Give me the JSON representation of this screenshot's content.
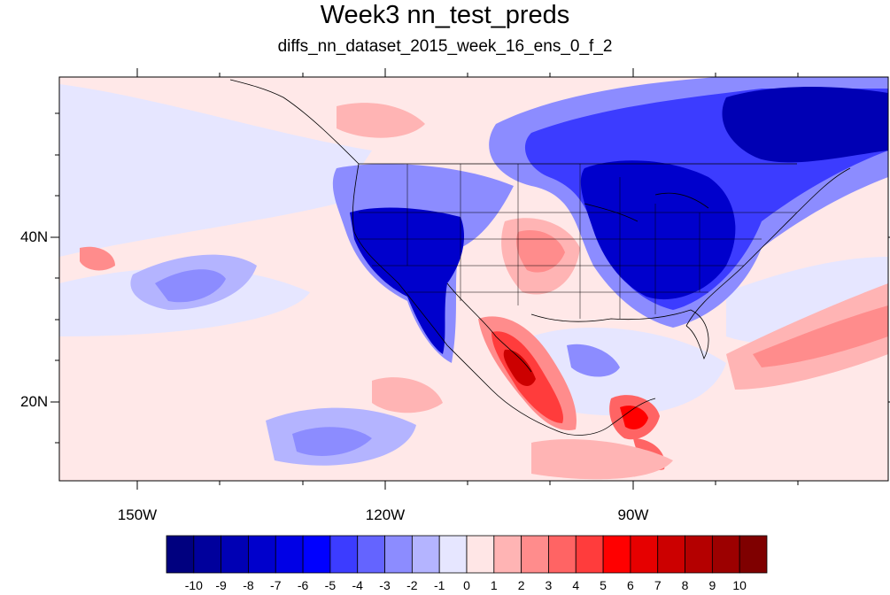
{
  "title": "Week3 nn_test_preds",
  "subtitle": "diffs_nn_dataset_2015_week_16_ens_0_f_2",
  "lat_labels": [
    "40N",
    "20N"
  ],
  "lon_labels": [
    "150W",
    "120W",
    "90W"
  ],
  "colorbar": {
    "labels": [
      "-10",
      "-9",
      "-8",
      "-7",
      "-6",
      "-5",
      "-4",
      "-3",
      "-2",
      "-1",
      "0",
      "1",
      "2",
      "3",
      "4",
      "5",
      "6",
      "7",
      "8",
      "9",
      "10"
    ],
    "colors": [
      "#00007f",
      "#00009c",
      "#0000b4",
      "#0000cc",
      "#0000e6",
      "#0000ff",
      "#3c3cff",
      "#6464ff",
      "#8c8cff",
      "#b4b4ff",
      "#e6e6ff",
      "#ffe6e6",
      "#ffb4b4",
      "#ff8c8c",
      "#ff6464",
      "#ff3c3c",
      "#ff0000",
      "#e60000",
      "#cc0000",
      "#b40000",
      "#9c0000",
      "#7f0000"
    ]
  },
  "map": {
    "background_color": "#ffe8e8",
    "anomaly_regions": [
      {
        "name": "western-us-cold",
        "level": -6
      },
      {
        "name": "eastern-us-cold",
        "level": -7
      },
      {
        "name": "canada-cold",
        "level": -8
      },
      {
        "name": "pacific-cold-band",
        "level": -3
      },
      {
        "name": "mexico-warm",
        "level": 7
      },
      {
        "name": "southern-plains-warm",
        "level": 3
      },
      {
        "name": "central-america-warm",
        "level": 6
      },
      {
        "name": "atlantic-warm-band",
        "level": 3
      },
      {
        "name": "gulf-cold",
        "level": -3
      }
    ]
  }
}
